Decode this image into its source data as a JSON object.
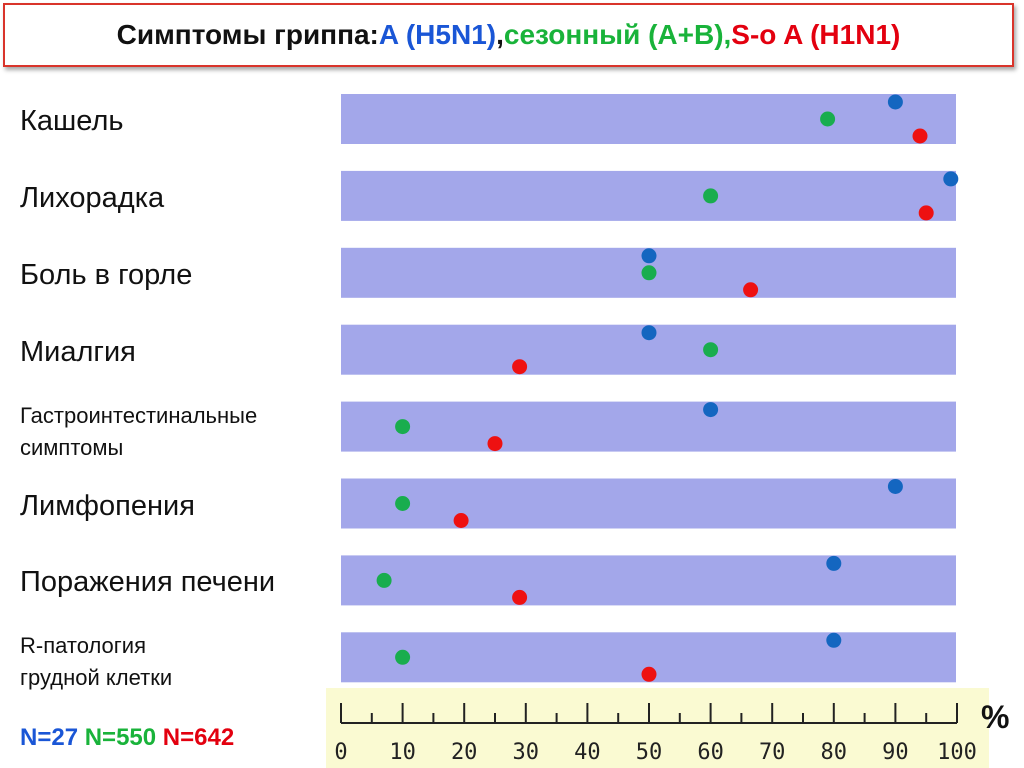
{
  "title": {
    "main": "Симптомы гриппа: ",
    "series1": "A (H5N1)",
    "sep": ", ",
    "series2": "сезонный (A+B), ",
    "series3": "S-o A (H1N1)"
  },
  "n_counts": [
    "N=27",
    "N=550",
    "N=642"
  ],
  "unit": "%",
  "colors": {
    "band": "#a3a7ea",
    "axis_panel": "#fafad2",
    "series1": "#1466c0",
    "series2": "#19ad4e",
    "series3": "#ee1111",
    "title_border": "#d9342b"
  },
  "chart_data": {
    "type": "scatter",
    "categories": [
      "Кашель",
      "Лихорадка",
      "Боль в горле",
      "Миалгия",
      "Гастроинтестинальные симптомы",
      "Лимфопения",
      "Поражения печени",
      "R-патология грудной клетки"
    ],
    "category_lines": [
      [
        "Кашель"
      ],
      [
        "Лихорадка"
      ],
      [
        "Боль в горле"
      ],
      [
        "Миалгия"
      ],
      [
        "Гастроинтестинальные",
        "симптомы"
      ],
      [
        "Лимфопения"
      ],
      [
        "Поражения печени"
      ],
      [
        "R-патология",
        "грудной клетки"
      ]
    ],
    "series": [
      {
        "name": "A (H5N1)",
        "values": [
          90,
          99,
          50,
          50,
          60,
          90,
          80,
          80
        ]
      },
      {
        "name": "сезонный (A+B)",
        "values": [
          79,
          60,
          50,
          60,
          10,
          10,
          7,
          10
        ]
      },
      {
        "name": "S-o A (H1N1)",
        "values": [
          94,
          95,
          66.5,
          29,
          25,
          19.5,
          29,
          50
        ]
      }
    ],
    "xlim": [
      0,
      100
    ],
    "xticks": [
      0,
      10,
      20,
      30,
      40,
      50,
      60,
      70,
      80,
      90,
      100
    ],
    "xlabel": "%"
  }
}
